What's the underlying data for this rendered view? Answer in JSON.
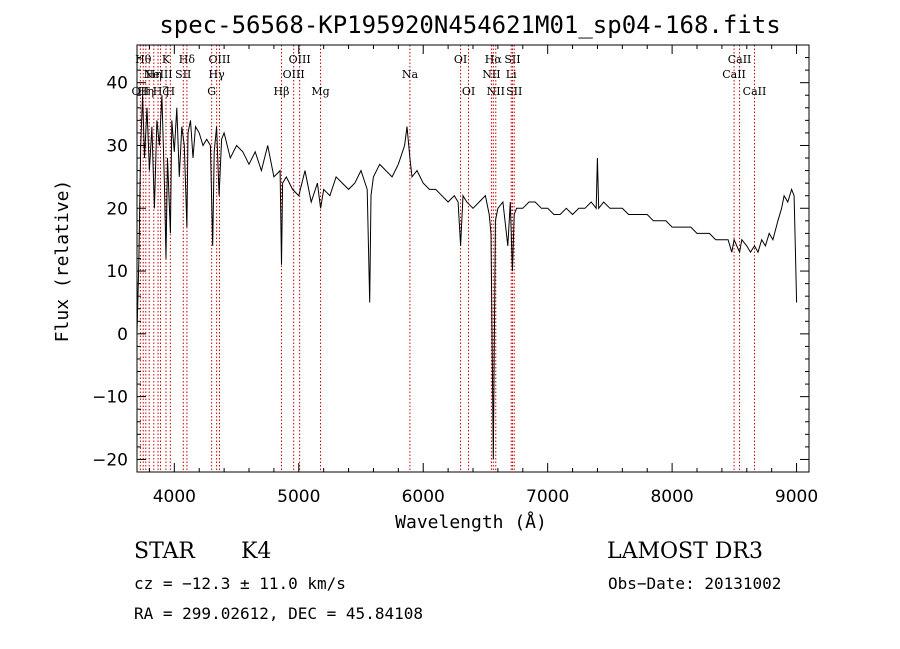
{
  "chart_data": {
    "type": "line",
    "title": "spec-56568-KP195920N454621M01_sp04-168.fits",
    "xlabel": "Wavelength (Å)",
    "ylabel": "Flux (relative)",
    "xlim": [
      3700,
      9100
    ],
    "ylim": [
      -22,
      46
    ],
    "xticks": [
      4000,
      5000,
      6000,
      7000,
      8000,
      9000
    ],
    "yticks": [
      -20,
      -10,
      0,
      10,
      20,
      30,
      40
    ],
    "grid": false,
    "series": [
      {
        "color": "#000000",
        "x": [
          3700,
          3715,
          3730,
          3745,
          3760,
          3780,
          3800,
          3820,
          3840,
          3860,
          3880,
          3900,
          3920,
          3933,
          3945,
          3968,
          3980,
          4000,
          4020,
          4040,
          4060,
          4080,
          4101,
          4110,
          4130,
          4150,
          4170,
          4200,
          4230,
          4260,
          4290,
          4308,
          4320,
          4340,
          4360,
          4380,
          4400,
          4450,
          4500,
          4550,
          4600,
          4650,
          4700,
          4750,
          4800,
          4850,
          4861,
          4870,
          4900,
          4950,
          5000,
          5050,
          5100,
          5150,
          5175,
          5200,
          5250,
          5300,
          5350,
          5400,
          5450,
          5500,
          5550,
          5570,
          5580,
          5600,
          5650,
          5700,
          5750,
          5800,
          5850,
          5870,
          5893,
          5910,
          5950,
          6000,
          6050,
          6100,
          6150,
          6200,
          6250,
          6280,
          6300,
          6320,
          6350,
          6400,
          6450,
          6500,
          6530,
          6545,
          6563,
          6580,
          6600,
          6640,
          6680,
          6700,
          6717,
          6731,
          6750,
          6800,
          6850,
          6900,
          6950,
          7000,
          7050,
          7100,
          7150,
          7200,
          7250,
          7300,
          7350,
          7390,
          7400,
          7410,
          7450,
          7500,
          7550,
          7600,
          7650,
          7700,
          7750,
          7800,
          7850,
          7900,
          7950,
          8000,
          8050,
          8100,
          8150,
          8200,
          8250,
          8300,
          8350,
          8400,
          8450,
          8480,
          8498,
          8520,
          8542,
          8560,
          8600,
          8630,
          8662,
          8690,
          8720,
          8750,
          8780,
          8810,
          8850,
          8880,
          8900,
          8930,
          8960,
          8980,
          8990,
          9000
        ],
        "y": [
          0,
          12,
          30,
          38,
          28,
          36,
          26,
          33,
          20,
          34,
          30,
          38,
          24,
          12,
          28,
          16,
          34,
          29,
          36,
          25,
          33,
          30,
          17,
          32,
          34,
          28,
          33,
          32,
          30,
          31,
          30,
          14,
          29,
          33,
          22,
          31,
          32,
          28,
          30,
          29,
          27,
          29,
          26,
          30,
          25,
          26,
          11,
          24,
          25,
          23,
          22,
          26,
          21,
          24,
          20,
          23,
          22,
          25,
          24,
          23,
          24,
          26,
          23,
          5,
          22,
          25,
          27,
          26,
          25,
          27,
          30,
          33,
          28,
          25,
          26,
          24,
          23,
          23,
          22,
          21,
          22,
          21,
          14,
          22,
          21,
          20,
          21,
          22,
          19,
          16,
          -20,
          18,
          20,
          21,
          14,
          21,
          10,
          19,
          20,
          20,
          21,
          21,
          20,
          20,
          19,
          19,
          20,
          19,
          20,
          20,
          21,
          20,
          28,
          20,
          21,
          20,
          20,
          20,
          19,
          19,
          19,
          19,
          18,
          18,
          18,
          17,
          17,
          17,
          17,
          16,
          16,
          16,
          15,
          15,
          15,
          13,
          15,
          14,
          13,
          15,
          14,
          13,
          14,
          13,
          15,
          14,
          16,
          15,
          18,
          20,
          22,
          21,
          23,
          22,
          14,
          5
        ]
      }
    ],
    "lines": [
      {
        "wave": 3727,
        "label": "OII",
        "row": 3
      },
      {
        "wave": 3750,
        "label": "Hθ",
        "row": 1
      },
      {
        "wave": 3771,
        "label": "Hη",
        "row": 3
      },
      {
        "wave": 3798,
        "label": "",
        "row": 0
      },
      {
        "wave": 3835,
        "label": "Hη",
        "row": 2
      },
      {
        "wave": 3869,
        "label": "NeIII",
        "row": 2
      },
      {
        "wave": 3889,
        "label": "Hζ",
        "row": 3
      },
      {
        "wave": 3933,
        "label": "K",
        "row": 1
      },
      {
        "wave": 3968,
        "label": "H",
        "row": 3
      },
      {
        "wave": 4072,
        "label": "SII",
        "row": 2
      },
      {
        "wave": 4101,
        "label": "Hδ",
        "row": 1
      },
      {
        "wave": 4300,
        "label": "G",
        "row": 3
      },
      {
        "wave": 4340,
        "label": "Hγ",
        "row": 2
      },
      {
        "wave": 4363,
        "label": "OIII",
        "row": 1
      },
      {
        "wave": 4861,
        "label": "Hβ",
        "row": 3
      },
      {
        "wave": 4959,
        "label": "OIII",
        "row": 2
      },
      {
        "wave": 5007,
        "label": "OIII",
        "row": 1
      },
      {
        "wave": 5175,
        "label": "Mg",
        "row": 3
      },
      {
        "wave": 5893,
        "label": "Na",
        "row": 2
      },
      {
        "wave": 6300,
        "label": "OI",
        "row": 1
      },
      {
        "wave": 6364,
        "label": "OI",
        "row": 3
      },
      {
        "wave": 6548,
        "label": "NII",
        "row": 2
      },
      {
        "wave": 6563,
        "label": "Hα",
        "row": 1
      },
      {
        "wave": 6583,
        "label": "NII",
        "row": 3
      },
      {
        "wave": 6707,
        "label": "Li",
        "row": 2
      },
      {
        "wave": 6717,
        "label": "SII",
        "row": 1
      },
      {
        "wave": 6731,
        "label": "SII",
        "row": 3
      },
      {
        "wave": 8498,
        "label": "CaII",
        "row": 2
      },
      {
        "wave": 8542,
        "label": "CaII",
        "row": 1
      },
      {
        "wave": 8662,
        "label": "CaII",
        "row": 3
      }
    ]
  },
  "info": {
    "class": "STAR",
    "subclass": "K4",
    "survey": "LAMOST DR3",
    "cz": "cz = −12.3 ± 11.0 km/s",
    "obs_date": "Obs−Date: 20131002",
    "radec": "RA = 299.02612, DEC =  45.84108"
  }
}
